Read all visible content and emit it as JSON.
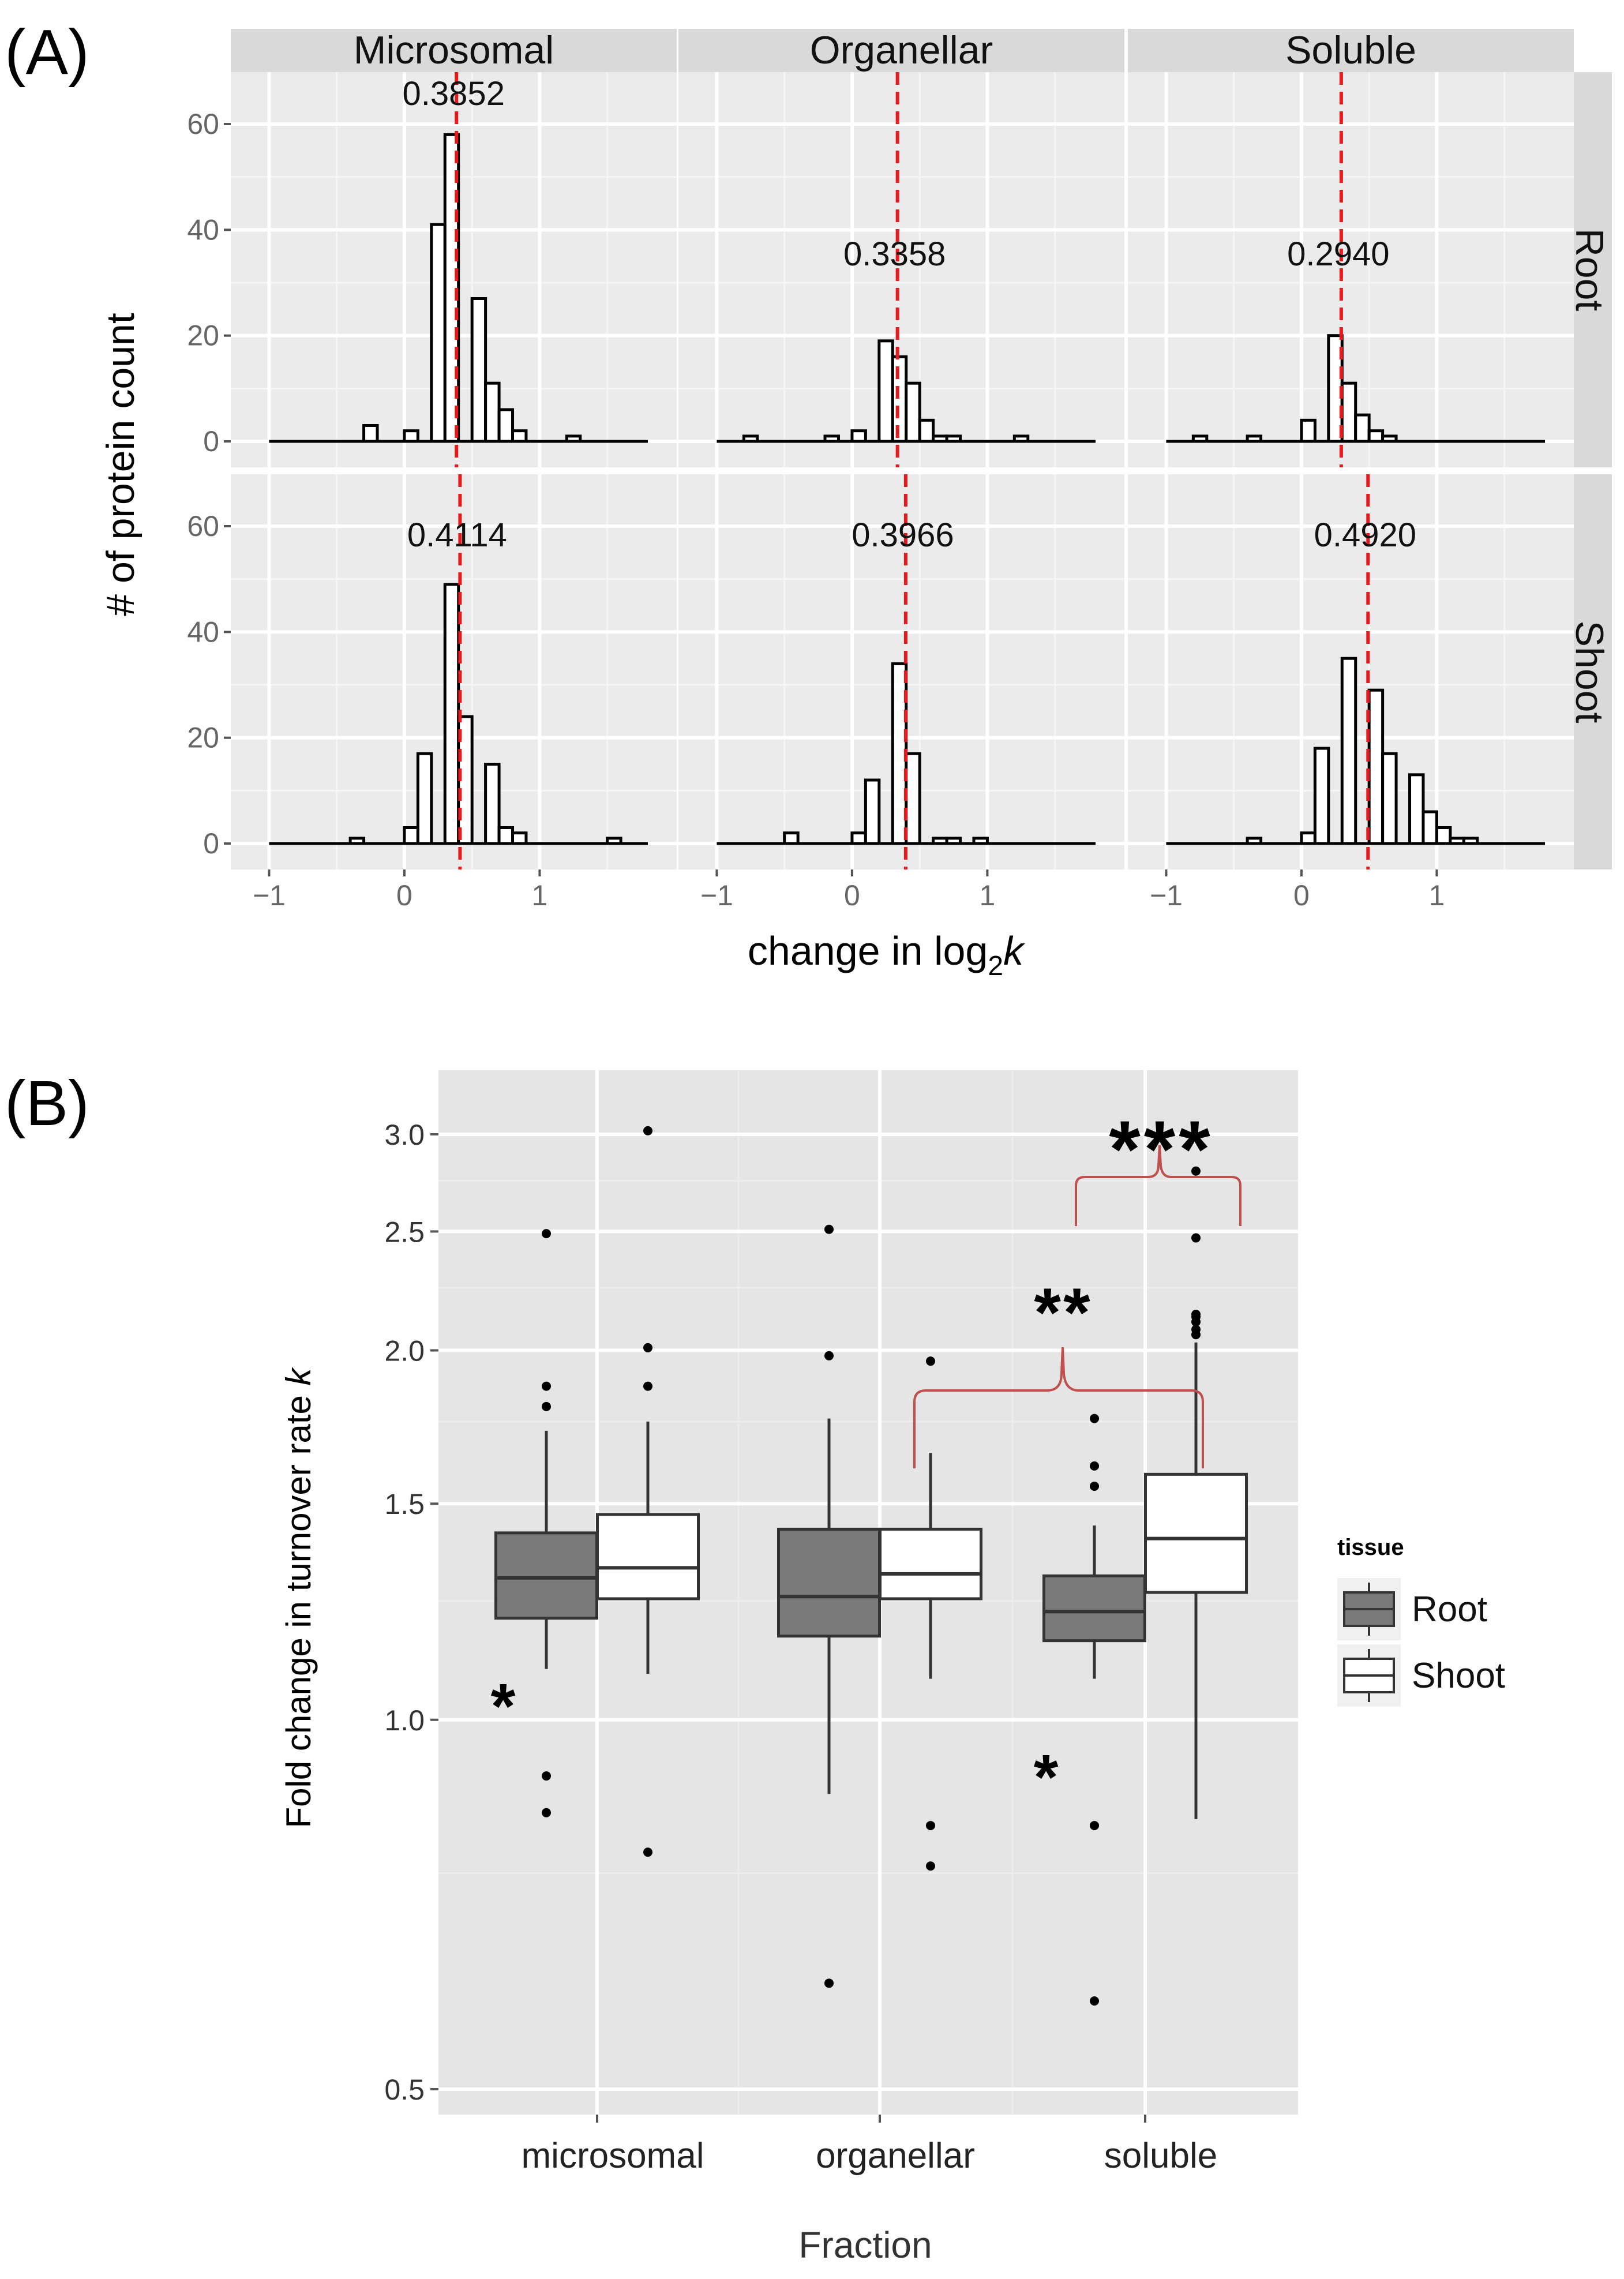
{
  "chart_data": [
    {
      "panel_label": "(A)",
      "type": "bar",
      "subtype": "faceted-histogram",
      "column_facets": [
        "Microsomal",
        "Organellar",
        "Soluble"
      ],
      "row_facets": [
        "Root",
        "Shoot"
      ],
      "xlabel_main": "change in log",
      "xlabel_sub": "2",
      "xlabel_var": "k",
      "ylabel": "# of protein count",
      "xlim": [
        -1.1,
        1.8
      ],
      "ylim": [
        0,
        65
      ],
      "x_ticks": [
        -1,
        0,
        1
      ],
      "y_ticks": [
        0,
        20,
        40,
        60
      ],
      "bin_width": 0.1,
      "grid": true,
      "panels": [
        {
          "row": "Root",
          "col": "Microsomal",
          "median": 0.3852,
          "median_label": "0.3852",
          "bins": [
            [
              -0.3,
              3
            ],
            [
              0.0,
              2
            ],
            [
              0.2,
              41
            ],
            [
              0.3,
              58
            ],
            [
              0.5,
              27
            ],
            [
              0.6,
              11
            ],
            [
              0.7,
              6
            ],
            [
              0.8,
              2
            ],
            [
              1.2,
              1
            ]
          ]
        },
        {
          "row": "Root",
          "col": "Organellar",
          "median": 0.3358,
          "median_label": "0.3358",
          "bins": [
            [
              -0.8,
              1
            ],
            [
              -0.2,
              1
            ],
            [
              0.0,
              2
            ],
            [
              0.2,
              19
            ],
            [
              0.3,
              16
            ],
            [
              0.4,
              11
            ],
            [
              0.5,
              4
            ],
            [
              0.6,
              1
            ],
            [
              0.7,
              1
            ],
            [
              1.2,
              1
            ]
          ]
        },
        {
          "row": "Root",
          "col": "Soluble",
          "median": 0.294,
          "median_label": "0.2940",
          "bins": [
            [
              -0.8,
              1
            ],
            [
              -0.4,
              1
            ],
            [
              0.0,
              4
            ],
            [
              0.2,
              20
            ],
            [
              0.3,
              11
            ],
            [
              0.4,
              5
            ],
            [
              0.5,
              2
            ],
            [
              0.6,
              1
            ]
          ]
        },
        {
          "row": "Shoot",
          "col": "Microsomal",
          "median": 0.4114,
          "median_label": "0.4114",
          "bins": [
            [
              -0.4,
              1
            ],
            [
              0.0,
              3
            ],
            [
              0.1,
              17
            ],
            [
              0.3,
              49
            ],
            [
              0.4,
              24
            ],
            [
              0.6,
              15
            ],
            [
              0.7,
              3
            ],
            [
              0.8,
              2
            ],
            [
              1.5,
              1
            ]
          ]
        },
        {
          "row": "Shoot",
          "col": "Organellar",
          "median": 0.3966,
          "median_label": "0.3966",
          "bins": [
            [
              -0.5,
              2
            ],
            [
              0.0,
              2
            ],
            [
              0.1,
              12
            ],
            [
              0.3,
              34
            ],
            [
              0.4,
              17
            ],
            [
              0.6,
              1
            ],
            [
              0.7,
              1
            ],
            [
              0.9,
              1
            ]
          ]
        },
        {
          "row": "Shoot",
          "col": "Soluble",
          "median": 0.492,
          "median_label": "0.4920",
          "bins": [
            [
              -0.4,
              1
            ],
            [
              0.0,
              2
            ],
            [
              0.1,
              18
            ],
            [
              0.3,
              35
            ],
            [
              0.5,
              29
            ],
            [
              0.6,
              17
            ],
            [
              0.8,
              13
            ],
            [
              0.9,
              6
            ],
            [
              1.0,
              3
            ],
            [
              1.1,
              1
            ],
            [
              1.2,
              1
            ]
          ]
        }
      ]
    },
    {
      "panel_label": "(B)",
      "type": "boxplot",
      "title": "",
      "xlabel": "Fraction",
      "ylabel_main": "Fold change in turnover rate ",
      "ylabel_var": "k",
      "categories": [
        "microsomal",
        "organellar",
        "soluble"
      ],
      "ylim": [
        0.5,
        3.15
      ],
      "y_ticks": [
        0.5,
        1.0,
        1.5,
        2.0,
        2.5,
        3.0
      ],
      "y_tick_labels": [
        "0.5",
        "1.0",
        "1.5",
        "2.0",
        "2.5",
        "3.0"
      ],
      "grid": true,
      "legend": {
        "title": "tissue",
        "position": "right",
        "entries": [
          "Root",
          "Shoot"
        ]
      },
      "colors": {
        "Root": "#7a7a7a",
        "Shoot": "#ffffff",
        "median_line": "#333333",
        "bracket": "#c0504d",
        "dashed_median": "#e41a1c"
      },
      "series": [
        {
          "name": "Root",
          "boxes": [
            {
              "category": "microsomal",
              "whisker_low": 1.1,
              "q1": 1.21,
              "median": 1.305,
              "q3": 1.42,
              "whisker_high": 1.72,
              "outliers": [
                0.84,
                0.9,
                1.8,
                1.87,
                2.49
              ]
            },
            {
              "category": "organellar",
              "whisker_low": 0.87,
              "q1": 1.17,
              "median": 1.26,
              "q3": 1.43,
              "whisker_high": 1.76,
              "outliers": [
                0.61,
                1.98,
                2.51
              ]
            },
            {
              "category": "soluble",
              "whisker_low": 1.08,
              "q1": 1.16,
              "median": 1.225,
              "q3": 1.31,
              "whisker_high": 1.44,
              "outliers": [
                0.59,
                0.82,
                1.55,
                1.61,
                1.76
              ]
            }
          ]
        },
        {
          "name": "Shoot",
          "boxes": [
            {
              "category": "microsomal",
              "whisker_low": 1.09,
              "q1": 1.255,
              "median": 1.33,
              "q3": 1.47,
              "whisker_high": 1.75,
              "outliers": [
                0.78,
                1.87,
                2.01,
                3.02
              ]
            },
            {
              "category": "organellar",
              "whisker_low": 1.08,
              "q1": 1.255,
              "median": 1.315,
              "q3": 1.43,
              "whisker_high": 1.65,
              "outliers": [
                0.76,
                0.82,
                1.96
              ]
            },
            {
              "category": "soluble",
              "whisker_low": 0.83,
              "q1": 1.27,
              "median": 1.405,
              "q3": 1.585,
              "whisker_high": 2.03,
              "outliers": [
                2.06,
                2.08,
                2.11,
                2.13,
                2.14,
                2.47,
                2.8
              ]
            }
          ]
        }
      ],
      "annotations": [
        {
          "text": "*",
          "category": "microsomal",
          "series": "Root"
        },
        {
          "text": "*",
          "category": "soluble",
          "series": "Root"
        },
        {
          "text": "**",
          "from": "organellar/Shoot",
          "to": "soluble/Shoot"
        },
        {
          "text": "***",
          "from": "soluble/Root",
          "to": "soluble/Shoot"
        }
      ]
    }
  ]
}
